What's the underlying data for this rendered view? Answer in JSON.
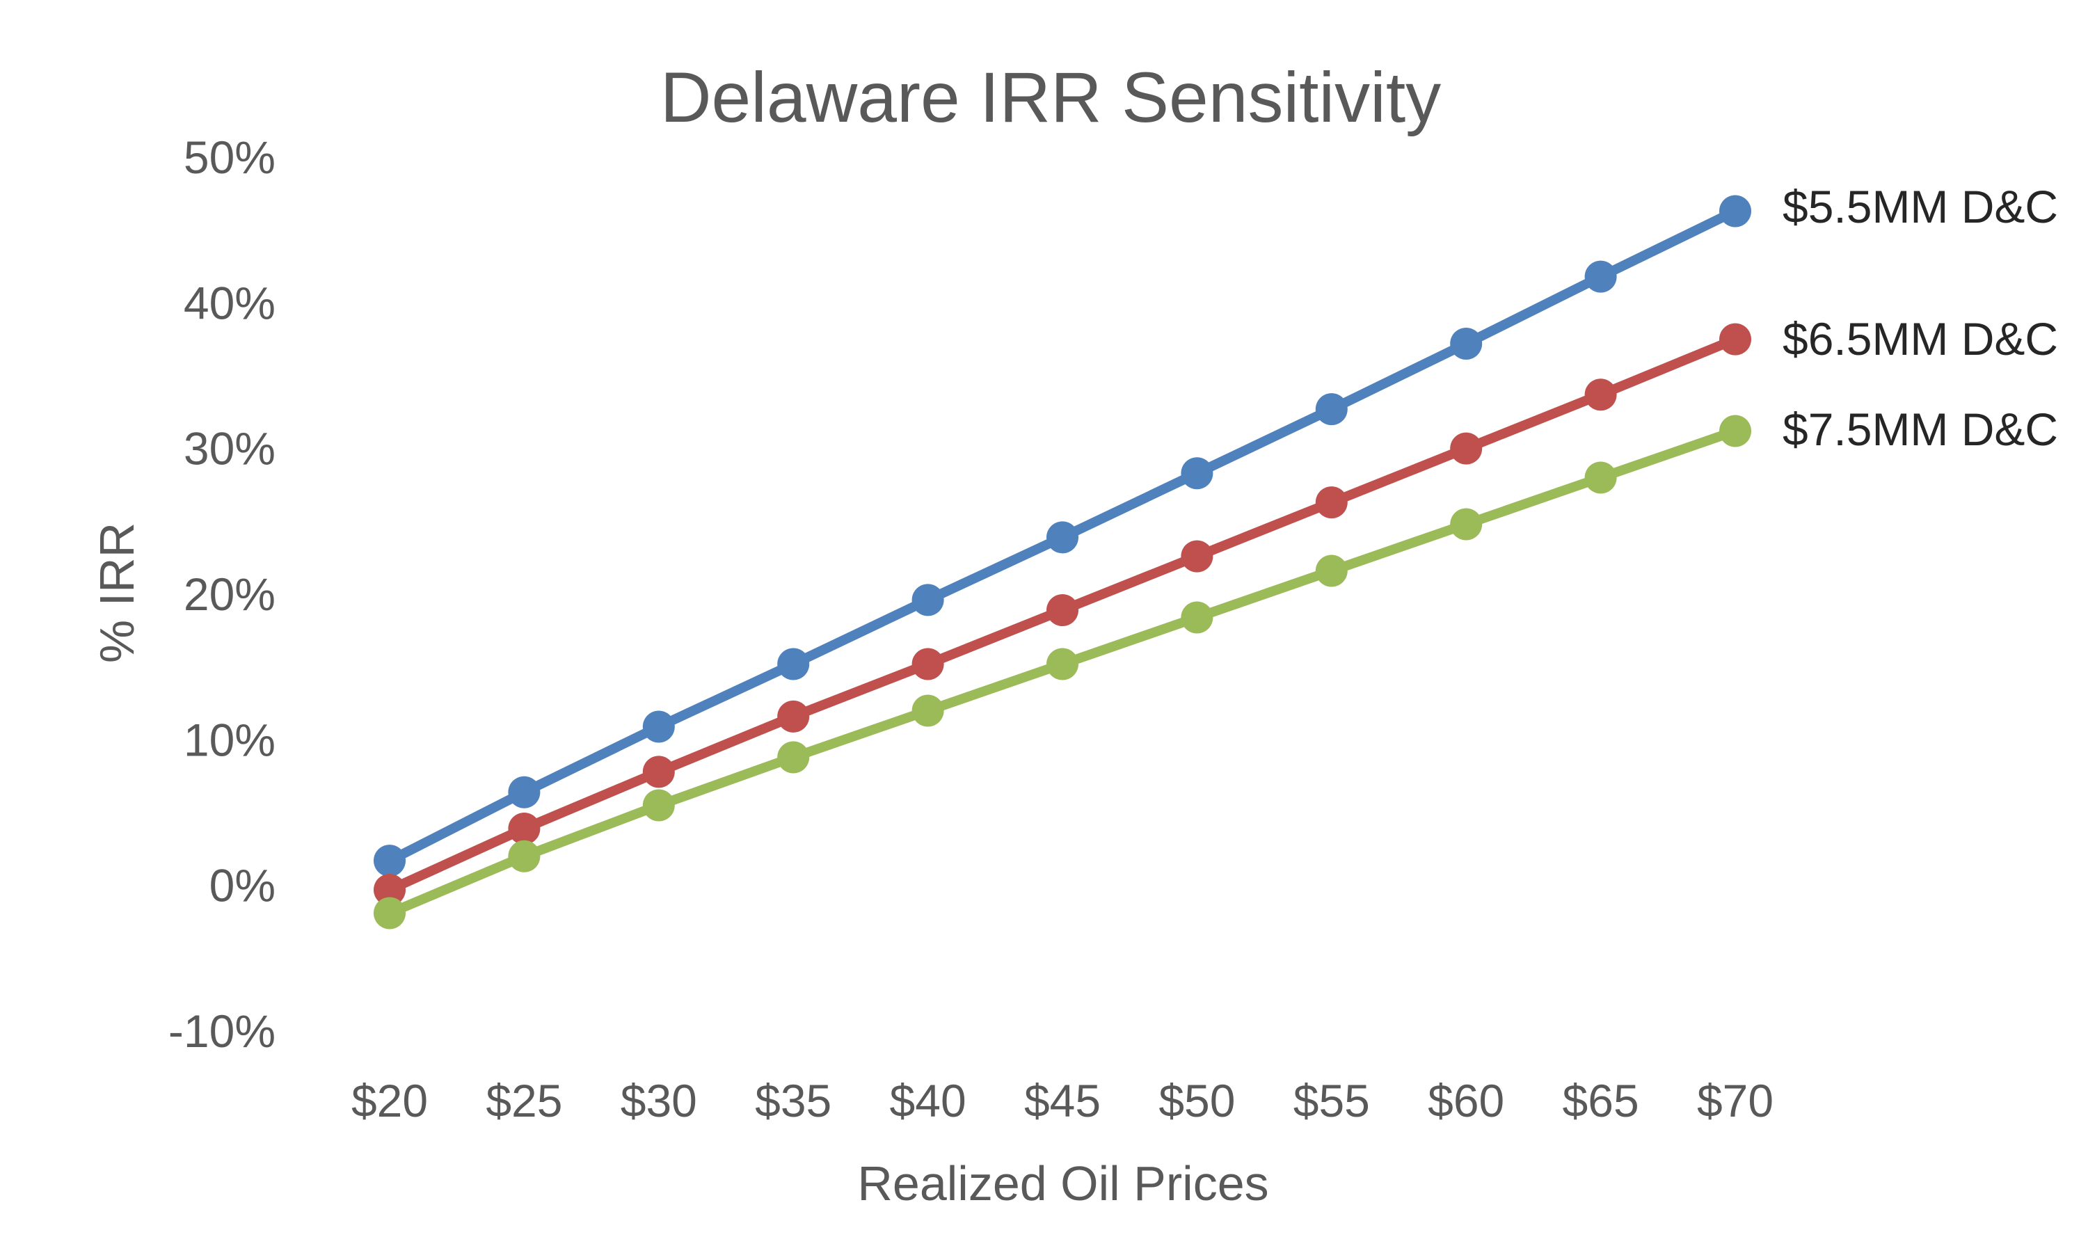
{
  "chart_data": {
    "type": "line",
    "title": "Delaware IRR Sensitivity",
    "xlabel": "Realized Oil Prices",
    "ylabel": "% IRR",
    "categories": [
      "$20",
      "$25",
      "$30",
      "$35",
      "$40",
      "$45",
      "$50",
      "$55",
      "$60",
      "$65",
      "$70"
    ],
    "ylim": [
      -10,
      50
    ],
    "yticks": [
      -10,
      0,
      10,
      20,
      30,
      40,
      50
    ],
    "ytick_labels": [
      "-10%",
      "0%",
      "10%",
      "20%",
      "30%",
      "40%",
      "50%"
    ],
    "grid": false,
    "legend": "right, at line ends",
    "series": [
      {
        "name": "$5.5MM D&C",
        "color": "#4F81BD",
        "values": [
          1.7,
          6.4,
          10.9,
          15.2,
          19.6,
          23.9,
          28.3,
          32.7,
          37.2,
          41.8,
          46.3
        ]
      },
      {
        "name": "$6.5MM D&C",
        "color": "#C0504D",
        "values": [
          -0.3,
          3.9,
          7.8,
          11.6,
          15.2,
          18.9,
          22.6,
          26.3,
          30.0,
          33.7,
          37.5
        ]
      },
      {
        "name": "$7.5MM D&C",
        "color": "#9BBB59",
        "values": [
          -1.9,
          2.0,
          5.5,
          8.8,
          12.0,
          15.2,
          18.4,
          21.6,
          24.8,
          28.0,
          31.2
        ]
      }
    ]
  }
}
